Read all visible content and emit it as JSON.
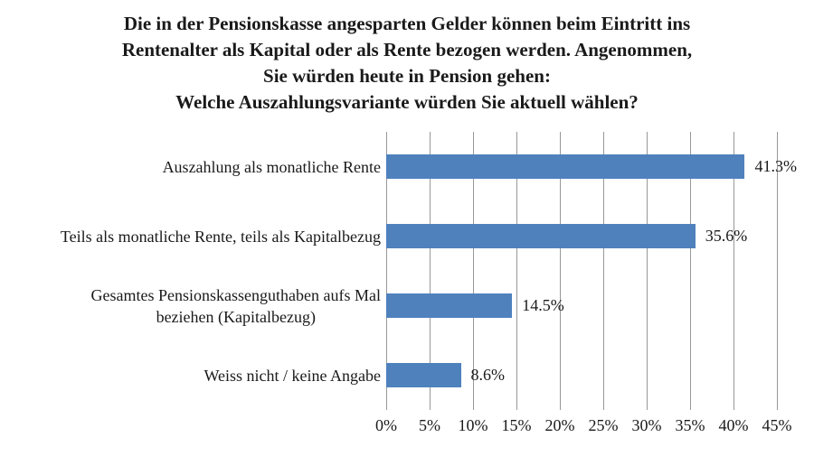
{
  "chart_data": {
    "type": "bar",
    "orientation": "horizontal",
    "title": "Die in der Pensionskasse angesparten Gelder können beim Eintritt ins\nRentenalter als Kapital oder als Rente bezogen werden. Angenommen,\nSie würden heute in Pension gehen:\nWelche Auszahlungsvariante würden Sie aktuell wählen?",
    "categories": [
      "Auszahlung als monatliche Rente",
      "Teils als monatliche Rente, teils als Kapitalbezug",
      "Gesamtes Pensionskassenguthaben aufs Mal\nbeziehen (Kapitalbezug)",
      "Weiss nicht / keine Angabe"
    ],
    "values": [
      41.3,
      35.6,
      14.5,
      8.6
    ],
    "value_labels": [
      "41.3%",
      "35.6%",
      "14.5%",
      "8.6%"
    ],
    "x_ticks": [
      "0%",
      "5%",
      "10%",
      "15%",
      "20%",
      "25%",
      "30%",
      "35%",
      "40%",
      "45%"
    ],
    "x_tick_values": [
      0,
      5,
      10,
      15,
      20,
      25,
      30,
      35,
      40,
      45
    ],
    "xlim": [
      0,
      45
    ],
    "xlabel": "",
    "ylabel": "",
    "grid": true,
    "legend": "none",
    "bar_color": "#4f81bd",
    "gridline_color": "#989898",
    "text_color": "#1a1a1a",
    "background_color": "#ffffff"
  }
}
